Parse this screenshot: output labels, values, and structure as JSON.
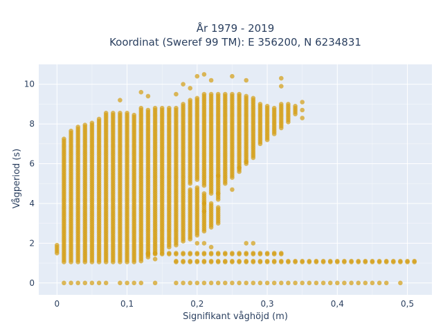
{
  "chart_data": {
    "type": "scatter",
    "title": "År 1979 - 2019",
    "subtitle": "Koordinat (Sweref 99 TM): E 356200, N 6234831",
    "xlabel": "Signifikant våghöjd (m)",
    "ylabel": "Vågperiod (s)",
    "xlim": [
      -0.026,
      0.535
    ],
    "ylim": [
      -0.6,
      11.0
    ],
    "x_ticks": [
      0,
      0.1,
      0.2,
      0.3,
      0.4,
      0.5
    ],
    "x_tick_labels": [
      "0",
      "0,1",
      "0,2",
      "0,3",
      "0,4",
      "0,5"
    ],
    "y_ticks": [
      0,
      2,
      4,
      6,
      8,
      10
    ],
    "y_tick_labels": [
      "0",
      "2",
      "4",
      "6",
      "8",
      "10"
    ],
    "grid": true,
    "legend": "none",
    "colors": {
      "marker": "#d4a017",
      "plot_bg": "#e5ecf6",
      "grid": "#ffffff",
      "text": "#2a3f5f"
    },
    "x_step": 0.01,
    "columns": [
      {
        "x": 0.0,
        "bands": [
          [
            1.5,
            1.9
          ]
        ]
      },
      {
        "x": 0.01,
        "bands": [
          [
            1.05,
            7.3
          ]
        ]
      },
      {
        "x": 0.02,
        "bands": [
          [
            1.05,
            7.7
          ]
        ]
      },
      {
        "x": 0.03,
        "bands": [
          [
            1.05,
            7.9
          ]
        ]
      },
      {
        "x": 0.04,
        "bands": [
          [
            1.05,
            7.95
          ]
        ]
      },
      {
        "x": 0.05,
        "bands": [
          [
            1.05,
            8.1
          ]
        ]
      },
      {
        "x": 0.06,
        "bands": [
          [
            1.05,
            8.3
          ]
        ]
      },
      {
        "x": 0.07,
        "bands": [
          [
            1.05,
            8.6
          ]
        ]
      },
      {
        "x": 0.08,
        "bands": [
          [
            1.05,
            8.6
          ]
        ]
      },
      {
        "x": 0.09,
        "bands": [
          [
            1.05,
            8.55
          ]
        ]
      },
      {
        "x": 0.1,
        "bands": [
          [
            1.05,
            8.6
          ]
        ]
      },
      {
        "x": 0.11,
        "bands": [
          [
            1.05,
            8.5
          ]
        ]
      },
      {
        "x": 0.12,
        "bands": [
          [
            1.2,
            8.8
          ]
        ]
      },
      {
        "x": 0.13,
        "bands": [
          [
            1.3,
            8.7
          ]
        ]
      },
      {
        "x": 0.14,
        "bands": [
          [
            1.5,
            8.8
          ]
        ]
      },
      {
        "x": 0.15,
        "bands": [
          [
            1.6,
            8.8
          ]
        ]
      },
      {
        "x": 0.16,
        "bands": [
          [
            1.8,
            8.8
          ]
        ]
      },
      {
        "x": 0.17,
        "bands": [
          [
            1.9,
            8.8
          ]
        ]
      },
      {
        "x": 0.18,
        "bands": [
          [
            2.1,
            9.0
          ]
        ]
      },
      {
        "x": 0.19,
        "bands": [
          [
            2.2,
            4.7
          ],
          [
            5.0,
            9.2
          ]
        ]
      },
      {
        "x": 0.2,
        "bands": [
          [
            2.4,
            4.8
          ],
          [
            5.2,
            9.3
          ]
        ]
      },
      {
        "x": 0.21,
        "bands": [
          [
            2.6,
            4.5
          ],
          [
            4.9,
            9.5
          ]
        ]
      },
      {
        "x": 0.22,
        "bands": [
          [
            2.8,
            4.0
          ],
          [
            4.5,
            9.5
          ]
        ]
      },
      {
        "x": 0.23,
        "bands": [
          [
            3.0,
            3.8
          ],
          [
            4.2,
            9.5
          ]
        ]
      },
      {
        "x": 0.24,
        "bands": [
          [
            5.0,
            9.5
          ]
        ]
      },
      {
        "x": 0.25,
        "bands": [
          [
            5.3,
            9.5
          ]
        ]
      },
      {
        "x": 0.26,
        "bands": [
          [
            5.6,
            9.5
          ]
        ]
      },
      {
        "x": 0.27,
        "bands": [
          [
            6.0,
            9.4
          ]
        ]
      },
      {
        "x": 0.28,
        "bands": [
          [
            6.3,
            9.3
          ]
        ]
      },
      {
        "x": 0.29,
        "bands": [
          [
            7.0,
            9.0
          ]
        ]
      },
      {
        "x": 0.3,
        "bands": [
          [
            7.2,
            8.9
          ]
        ]
      },
      {
        "x": 0.31,
        "bands": [
          [
            7.5,
            8.8
          ]
        ]
      },
      {
        "x": 0.32,
        "bands": [
          [
            7.8,
            9.0
          ]
        ]
      },
      {
        "x": 0.33,
        "bands": [
          [
            8.1,
            9.0
          ]
        ]
      },
      {
        "x": 0.34,
        "bands": [
          [
            8.5,
            8.9
          ]
        ]
      }
    ],
    "baseline_rows": [
      {
        "y": 1.1,
        "x_from": 0.17,
        "x_to": 0.51
      },
      {
        "y": 1.5,
        "x_from": 0.13,
        "x_to": 0.32
      }
    ],
    "zero_row": {
      "y": 0,
      "x_values": [
        0.01,
        0.02,
        0.03,
        0.04,
        0.05,
        0.06,
        0.07,
        0.09,
        0.1,
        0.11,
        0.12,
        0.14,
        0.17,
        0.18,
        0.19,
        0.2,
        0.21,
        0.22,
        0.23,
        0.24,
        0.25,
        0.26,
        0.27,
        0.28,
        0.29,
        0.3,
        0.31,
        0.32,
        0.33,
        0.34,
        0.35,
        0.36,
        0.37,
        0.38,
        0.39,
        0.4,
        0.41,
        0.42,
        0.43,
        0.44,
        0.45,
        0.46,
        0.47,
        0.49
      ]
    },
    "outliers": [
      {
        "x": 0.09,
        "y": 9.2
      },
      {
        "x": 0.12,
        "y": 9.6
      },
      {
        "x": 0.13,
        "y": 9.4
      },
      {
        "x": 0.17,
        "y": 9.5
      },
      {
        "x": 0.18,
        "y": 10.0
      },
      {
        "x": 0.19,
        "y": 9.8
      },
      {
        "x": 0.2,
        "y": 10.4
      },
      {
        "x": 0.21,
        "y": 10.5
      },
      {
        "x": 0.22,
        "y": 10.2
      },
      {
        "x": 0.25,
        "y": 10.4
      },
      {
        "x": 0.27,
        "y": 10.2
      },
      {
        "x": 0.32,
        "y": 10.3
      },
      {
        "x": 0.32,
        "y": 9.9
      },
      {
        "x": 0.35,
        "y": 8.7
      },
      {
        "x": 0.35,
        "y": 8.3
      },
      {
        "x": 0.35,
        "y": 9.1
      },
      {
        "x": 0.21,
        "y": 4.0
      },
      {
        "x": 0.21,
        "y": 3.6
      },
      {
        "x": 0.23,
        "y": 4.5
      },
      {
        "x": 0.25,
        "y": 4.7
      },
      {
        "x": 0.2,
        "y": 2.0
      },
      {
        "x": 0.21,
        "y": 2.0
      },
      {
        "x": 0.22,
        "y": 1.8
      },
      {
        "x": 0.27,
        "y": 2.0
      },
      {
        "x": 0.28,
        "y": 2.0
      },
      {
        "x": 0.12,
        "y": 1.1
      },
      {
        "x": 0.14,
        "y": 1.2
      },
      {
        "x": 0.23,
        "y": 5.4
      },
      {
        "x": 0.26,
        "y": 5.8
      },
      {
        "x": 0.27,
        "y": 6.1
      }
    ]
  }
}
